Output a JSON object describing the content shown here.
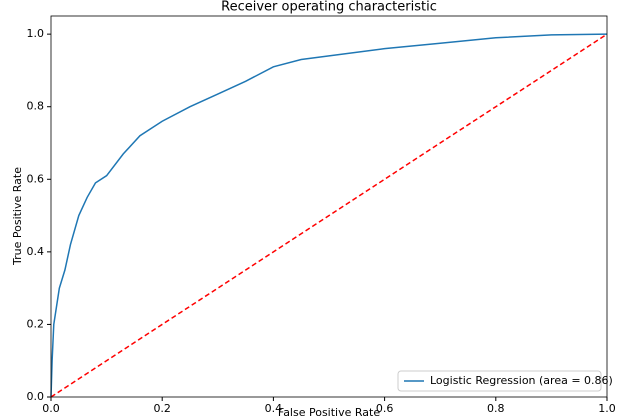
{
  "chart_data": {
    "type": "line",
    "title": "Receiver operating characteristic",
    "x_label": "False Positive Rate",
    "y_label": "True Positive Rate",
    "x": [
      0,
      0.002,
      0.005,
      0.01,
      0.015,
      0.025,
      0.035,
      0.05,
      0.065,
      0.08,
      0.1,
      0.13,
      0.16,
      0.2,
      0.25,
      0.3,
      0.35,
      0.4,
      0.45,
      0.5,
      0.6,
      0.7,
      0.8,
      0.9,
      1
    ],
    "series": [
      {
        "name": "Logistic Regression (area = 0.86)",
        "color": "#1f77b4",
        "values": [
          0,
          0.1,
          0.2,
          0.25,
          0.3,
          0.35,
          0.42,
          0.5,
          0.55,
          0.59,
          0.61,
          0.67,
          0.72,
          0.76,
          0.8,
          0.835,
          0.87,
          0.91,
          0.93,
          0.94,
          0.96,
          0.975,
          0.99,
          0.998,
          1
        ]
      }
    ],
    "reference_line": {
      "x": [
        0,
        1
      ],
      "values": [
        0,
        1
      ],
      "color": "red",
      "dashed": true
    },
    "xlim": [
      0,
      1
    ],
    "ylim": [
      0,
      1.05
    ],
    "xticks": [
      {
        "value": 0,
        "label": "0.0"
      },
      0.2,
      0.4,
      0.6,
      0.8,
      {
        "value": 1,
        "label": "1.0"
      }
    ],
    "yticks": [
      {
        "value": 0,
        "label": "0.0"
      },
      0.2,
      0.4,
      0.6,
      0.8,
      {
        "value": 1,
        "label": "1.0"
      }
    ],
    "grid": false,
    "legend": "lower right"
  }
}
